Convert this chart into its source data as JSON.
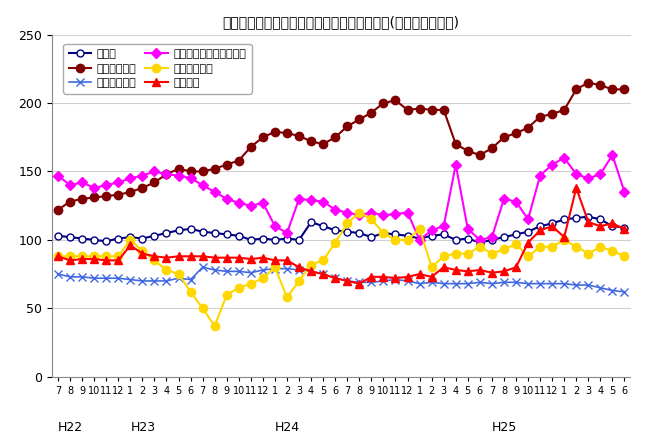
{
  "title": "三重県鉱工業生産及び主要業種別指数の推移(季節調整済指数)",
  "ylim": [
    0,
    250
  ],
  "yticks": [
    0,
    50,
    100,
    150,
    200,
    250
  ],
  "x_labels": [
    "7",
    "8",
    "9",
    "10",
    "11",
    "12",
    "1",
    "2",
    "3",
    "4",
    "5",
    "6",
    "7",
    "8",
    "9",
    "10",
    "11",
    "12",
    "1",
    "2",
    "3",
    "4",
    "5",
    "6",
    "7",
    "8",
    "9",
    "10",
    "11",
    "12",
    "1",
    "2",
    "3",
    "4",
    "5",
    "6",
    "7",
    "8",
    "9",
    "10",
    "11",
    "12",
    "1",
    "2",
    "3",
    "4",
    "5",
    "6"
  ],
  "x_group_labels": [
    {
      "label": "H22",
      "index": 0
    },
    {
      "label": "H23",
      "index": 6
    },
    {
      "label": "H24",
      "index": 18
    },
    {
      "label": "H25",
      "index": 36
    }
  ],
  "series": [
    {
      "name": "鉱工業",
      "color": "#000080",
      "marker": "o",
      "marker_face": "white",
      "linewidth": 1.5,
      "markersize": 5,
      "values": [
        103,
        102,
        101,
        100,
        99,
        101,
        102,
        101,
        103,
        105,
        107,
        108,
        106,
        105,
        104,
        103,
        100,
        101,
        100,
        101,
        100,
        113,
        110,
        107,
        106,
        105,
        102,
        105,
        104,
        103,
        101,
        103,
        104,
        100,
        101,
        98,
        100,
        102,
        104,
        106,
        110,
        112,
        115,
        116,
        117,
        115,
        110,
        109
      ]
    },
    {
      "name": "一般機械工業",
      "color": "#800000",
      "marker": "o",
      "marker_face": "#800000",
      "linewidth": 1.5,
      "markersize": 6,
      "values": [
        122,
        128,
        130,
        131,
        132,
        133,
        135,
        138,
        142,
        148,
        152,
        150,
        150,
        152,
        155,
        158,
        168,
        175,
        179,
        178,
        176,
        172,
        170,
        175,
        183,
        188,
        193,
        200,
        202,
        195,
        196,
        195,
        195,
        170,
        165,
        162,
        167,
        175,
        178,
        182,
        190,
        192,
        195,
        210,
        215,
        213,
        210,
        210
      ]
    },
    {
      "name": "電気機械工業",
      "color": "#4169E1",
      "marker": "x",
      "marker_face": "#4169E1",
      "linewidth": 1.2,
      "markersize": 6,
      "values": [
        75,
        73,
        73,
        72,
        72,
        72,
        71,
        70,
        70,
        70,
        72,
        71,
        80,
        78,
        77,
        77,
        76,
        78,
        79,
        79,
        78,
        77,
        75,
        72,
        70,
        69,
        69,
        70,
        71,
        70,
        68,
        69,
        68,
        68,
        68,
        69,
        68,
        69,
        69,
        68,
        68,
        68,
        68,
        67,
        67,
        65,
        63,
        62
      ]
    },
    {
      "name": "電子部品・デバイス工業",
      "color": "#FF00FF",
      "marker": "D",
      "marker_face": "#FF00FF",
      "linewidth": 1.5,
      "markersize": 5,
      "values": [
        147,
        140,
        142,
        138,
        140,
        142,
        145,
        147,
        150,
        148,
        147,
        145,
        140,
        135,
        130,
        127,
        125,
        127,
        110,
        105,
        130,
        129,
        128,
        122,
        120,
        118,
        120,
        118,
        119,
        120,
        100,
        107,
        110,
        155,
        108,
        100,
        102,
        130,
        128,
        115,
        147,
        155,
        160,
        148,
        145,
        148,
        162,
        135
      ]
    },
    {
      "name": "輸送機械工業",
      "color": "#FFD700",
      "marker": "o",
      "marker_face": "#FFD700",
      "linewidth": 1.5,
      "markersize": 6,
      "values": [
        88,
        88,
        88,
        88,
        88,
        88,
        100,
        92,
        85,
        78,
        75,
        62,
        50,
        37,
        60,
        65,
        68,
        72,
        80,
        58,
        70,
        82,
        85,
        98,
        112,
        120,
        115,
        105,
        100,
        100,
        108,
        80,
        88,
        90,
        90,
        95,
        90,
        93,
        97,
        88,
        95,
        95,
        100,
        95,
        90,
        95,
        92,
        88
      ]
    },
    {
      "name": "化学工業",
      "color": "#FF0000",
      "marker": "^",
      "marker_face": "#FF0000",
      "linewidth": 1.5,
      "markersize": 6,
      "values": [
        88,
        85,
        86,
        86,
        85,
        85,
        96,
        90,
        88,
        87,
        88,
        88,
        88,
        87,
        87,
        87,
        86,
        87,
        85,
        85,
        80,
        77,
        75,
        72,
        70,
        68,
        73,
        73,
        72,
        73,
        75,
        73,
        80,
        78,
        77,
        78,
        76,
        77,
        80,
        98,
        107,
        110,
        102,
        138,
        113,
        110,
        112,
        108
      ]
    }
  ],
  "background_color": "#ffffff",
  "grid_color": "#d0d0d0"
}
